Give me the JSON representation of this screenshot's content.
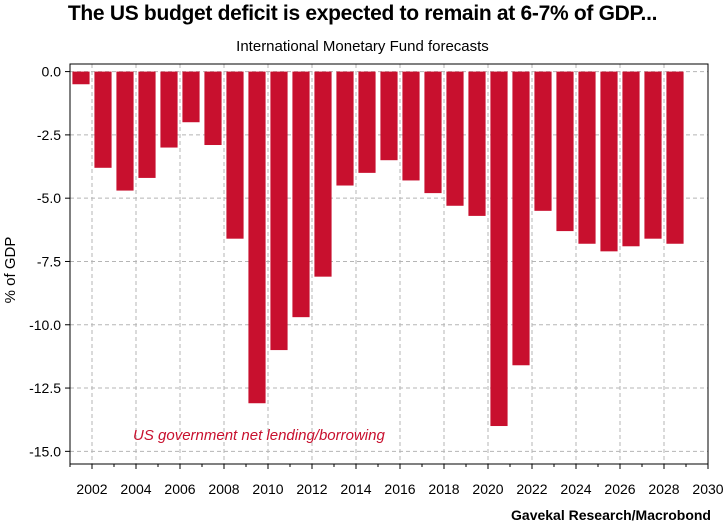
{
  "header": {
    "title": "The US budget deficit is expected to remain at 6-7% of GDP...",
    "subtitle": "International Monetary Fund forecasts"
  },
  "footer": {
    "source": "Gavekal Research/Macrobond"
  },
  "chart_data": {
    "type": "bar",
    "ylabel": "% of GDP",
    "ylim": [
      -15.5,
      0.3
    ],
    "yticks": [
      0.0,
      -2.5,
      -5.0,
      -7.5,
      -10.0,
      -12.5,
      -15.0
    ],
    "ytick_labels": [
      "0.0",
      "-2.5",
      "-5.0",
      "-7.5",
      "-10.0",
      "-12.5",
      "-15.0"
    ],
    "xlim": [
      2001,
      2030
    ],
    "xticks": [
      2002,
      2004,
      2006,
      2008,
      2010,
      2012,
      2014,
      2016,
      2018,
      2020,
      2022,
      2024,
      2026,
      2028,
      2030
    ],
    "grid": true,
    "bar_color": "#c8102e",
    "series": [
      {
        "name": "US government net lending/borrowing",
        "x": [
          2001,
          2002,
          2003,
          2004,
          2005,
          2006,
          2007,
          2008,
          2009,
          2010,
          2011,
          2012,
          2013,
          2014,
          2015,
          2016,
          2017,
          2018,
          2019,
          2020,
          2021,
          2022,
          2023,
          2024,
          2025,
          2026,
          2027,
          2028
        ],
        "values": [
          -0.5,
          -3.8,
          -4.7,
          -4.2,
          -3.0,
          -2.0,
          -2.9,
          -6.6,
          -13.1,
          -11.0,
          -9.7,
          -8.1,
          -4.5,
          -4.0,
          -3.5,
          -4.3,
          -4.8,
          -5.3,
          -5.7,
          -14.0,
          -11.6,
          -5.5,
          -6.3,
          -6.8,
          -7.1,
          -6.9,
          -6.6,
          -6.8
        ]
      }
    ]
  }
}
